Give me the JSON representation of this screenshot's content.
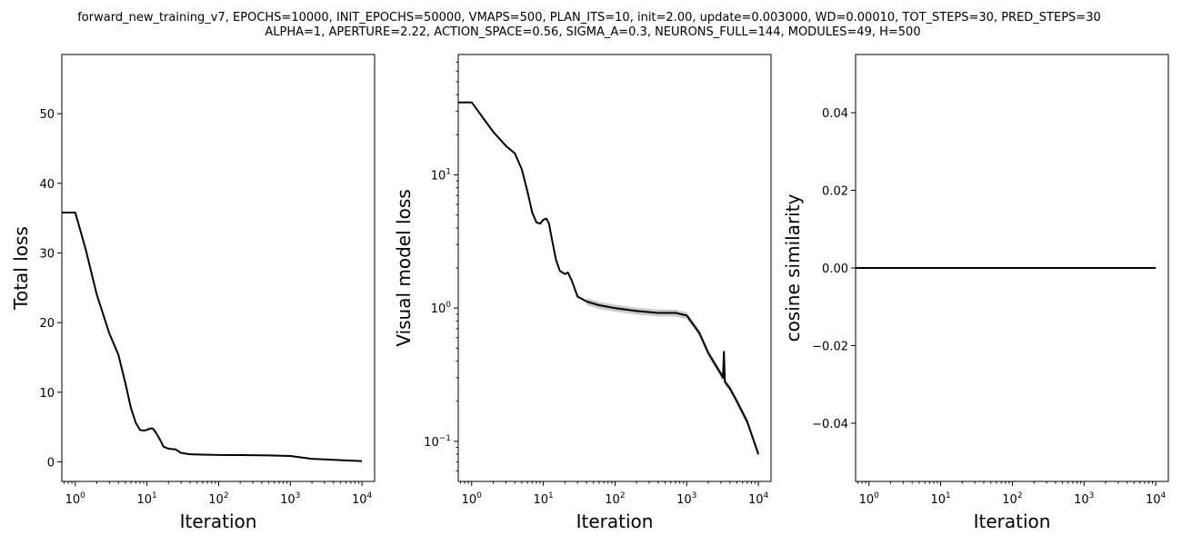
{
  "figure": {
    "title_lines": [
      "forward_new_training_v7, EPOCHS=10000, INIT_EPOCHS=50000, VMAPS=500, PLAN_ITS=10, init=2.00, update=0.003000, WD=0.00010, TOT_STEPS=30, PRED_STEPS=30",
      "ALPHA=1, APERTURE=2.22, ACTION_SPACE=0.56, SIGMA_A=0.3, NEURONS_FULL=144, MODULES=49, H=500"
    ]
  },
  "chart_data": [
    {
      "type": "line",
      "xlabel": "Iteration",
      "ylabel": "Total loss",
      "xscale": "log",
      "yscale": "linear",
      "xlim": [
        0.65,
        15000
      ],
      "ylim": [
        -2.8,
        58.5
      ],
      "xticks": [
        {
          "value": 1,
          "label": "10^0"
        },
        {
          "value": 10,
          "label": "10^1"
        },
        {
          "value": 100,
          "label": "10^2"
        },
        {
          "value": 1000,
          "label": "10^3"
        },
        {
          "value": 10000,
          "label": "10^4"
        }
      ],
      "yticks": [
        {
          "value": 0,
          "label": "0"
        },
        {
          "value": 10,
          "label": "10"
        },
        {
          "value": 20,
          "label": "20"
        },
        {
          "value": 30,
          "label": "30"
        },
        {
          "value": 40,
          "label": "40"
        },
        {
          "value": 50,
          "label": "50"
        }
      ],
      "series": [
        {
          "color": "#000000",
          "x": [
            0.65,
            1,
            1.4,
            2,
            3,
            4,
            5,
            6,
            7,
            8,
            9,
            10,
            11,
            12,
            13,
            15,
            17,
            20,
            25,
            30,
            40,
            60,
            100,
            200,
            500,
            1000,
            1500,
            2000,
            3000,
            5000,
            10000
          ],
          "y": [
            35.8,
            35.8,
            30.5,
            24,
            18.4,
            15.4,
            11.3,
            7.7,
            5.6,
            4.6,
            4.5,
            4.6,
            4.8,
            4.8,
            4.4,
            3.3,
            2.2,
            1.9,
            1.8,
            1.3,
            1.1,
            1.05,
            1.0,
            0.98,
            0.93,
            0.85,
            0.6,
            0.45,
            0.35,
            0.25,
            0.12
          ]
        }
      ]
    },
    {
      "type": "line",
      "xlabel": "Iteration",
      "ylabel": "Visual model loss",
      "xscale": "log",
      "yscale": "log",
      "xlim": [
        0.65,
        15000
      ],
      "ylim": [
        0.05,
        80
      ],
      "xticks": [
        {
          "value": 1,
          "label": "10^0"
        },
        {
          "value": 10,
          "label": "10^1"
        },
        {
          "value": 100,
          "label": "10^2"
        },
        {
          "value": 1000,
          "label": "10^3"
        },
        {
          "value": 10000,
          "label": "10^4"
        }
      ],
      "yticks": [
        {
          "value": 0.1,
          "label": "10^-1"
        },
        {
          "value": 1,
          "label": "10^0"
        },
        {
          "value": 10,
          "label": "10^1"
        }
      ],
      "series": [
        {
          "color": "#000000",
          "x": [
            0.65,
            1,
            1.5,
            2,
            3,
            4,
            5,
            6,
            7,
            8,
            9,
            10,
            11,
            12,
            13,
            15,
            17,
            20,
            22,
            25,
            30,
            40,
            60,
            100,
            200,
            400,
            700,
            1000,
            1500,
            2000,
            3000,
            3200,
            3300,
            3400,
            4000,
            5000,
            7000,
            10000
          ],
          "y": [
            35,
            35,
            26,
            21,
            16.5,
            14.5,
            11,
            7.5,
            5.2,
            4.4,
            4.3,
            4.6,
            4.7,
            4.3,
            3.4,
            2.3,
            1.9,
            1.8,
            1.85,
            1.6,
            1.22,
            1.12,
            1.05,
            1.0,
            0.95,
            0.92,
            0.92,
            0.88,
            0.65,
            0.46,
            0.32,
            0.3,
            0.47,
            0.28,
            0.25,
            0.2,
            0.14,
            0.08
          ]
        }
      ],
      "band": {
        "color": "#bdbdbd",
        "x_from": 40,
        "relative_width": 0.06
      }
    },
    {
      "type": "line",
      "xlabel": "Iteration",
      "ylabel": "cosine similarity",
      "xscale": "log",
      "yscale": "linear",
      "xlim": [
        0.65,
        15000
      ],
      "ylim": [
        -0.055,
        0.055
      ],
      "xticks": [
        {
          "value": 1,
          "label": "10^0"
        },
        {
          "value": 10,
          "label": "10^1"
        },
        {
          "value": 100,
          "label": "10^2"
        },
        {
          "value": 1000,
          "label": "10^3"
        },
        {
          "value": 10000,
          "label": "10^4"
        }
      ],
      "yticks": [
        {
          "value": -0.04,
          "label": "−0.04"
        },
        {
          "value": -0.02,
          "label": "−0.02"
        },
        {
          "value": 0.0,
          "label": "0.00"
        },
        {
          "value": 0.02,
          "label": "0.02"
        },
        {
          "value": 0.04,
          "label": "0.04"
        }
      ],
      "series": [
        {
          "color": "#000000",
          "x": [
            0.65,
            10000
          ],
          "y": [
            0.0,
            0.0
          ]
        }
      ]
    }
  ]
}
